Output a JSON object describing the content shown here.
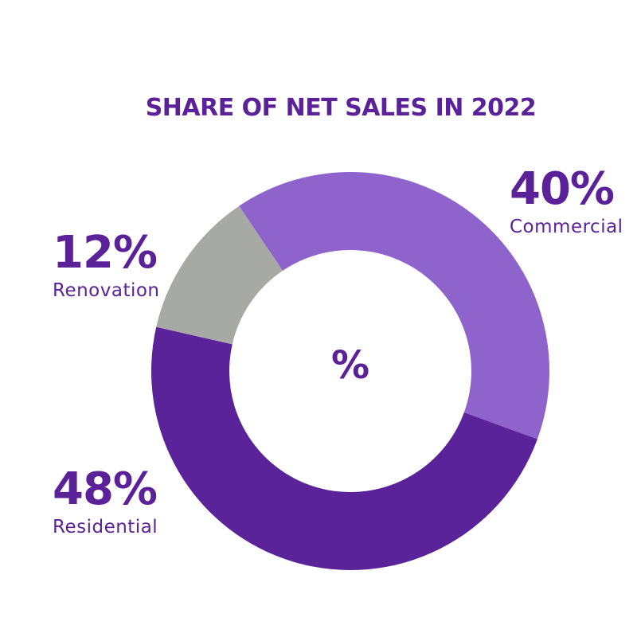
{
  "chart_data": {
    "type": "pie",
    "variant": "donut",
    "title": "SHARE OF NET SALES IN 2022",
    "center_label": "%",
    "slices": [
      {
        "label": "Commercial",
        "value": 40,
        "value_label": "40%",
        "color": "#8e63cc"
      },
      {
        "label": "Residential",
        "value": 48,
        "value_label": "48%",
        "color": "#5b2399"
      },
      {
        "label": "Renovation",
        "value": 12,
        "value_label": "12%",
        "color": "#a7aaa4"
      }
    ],
    "accent_color": "#5b2199"
  }
}
